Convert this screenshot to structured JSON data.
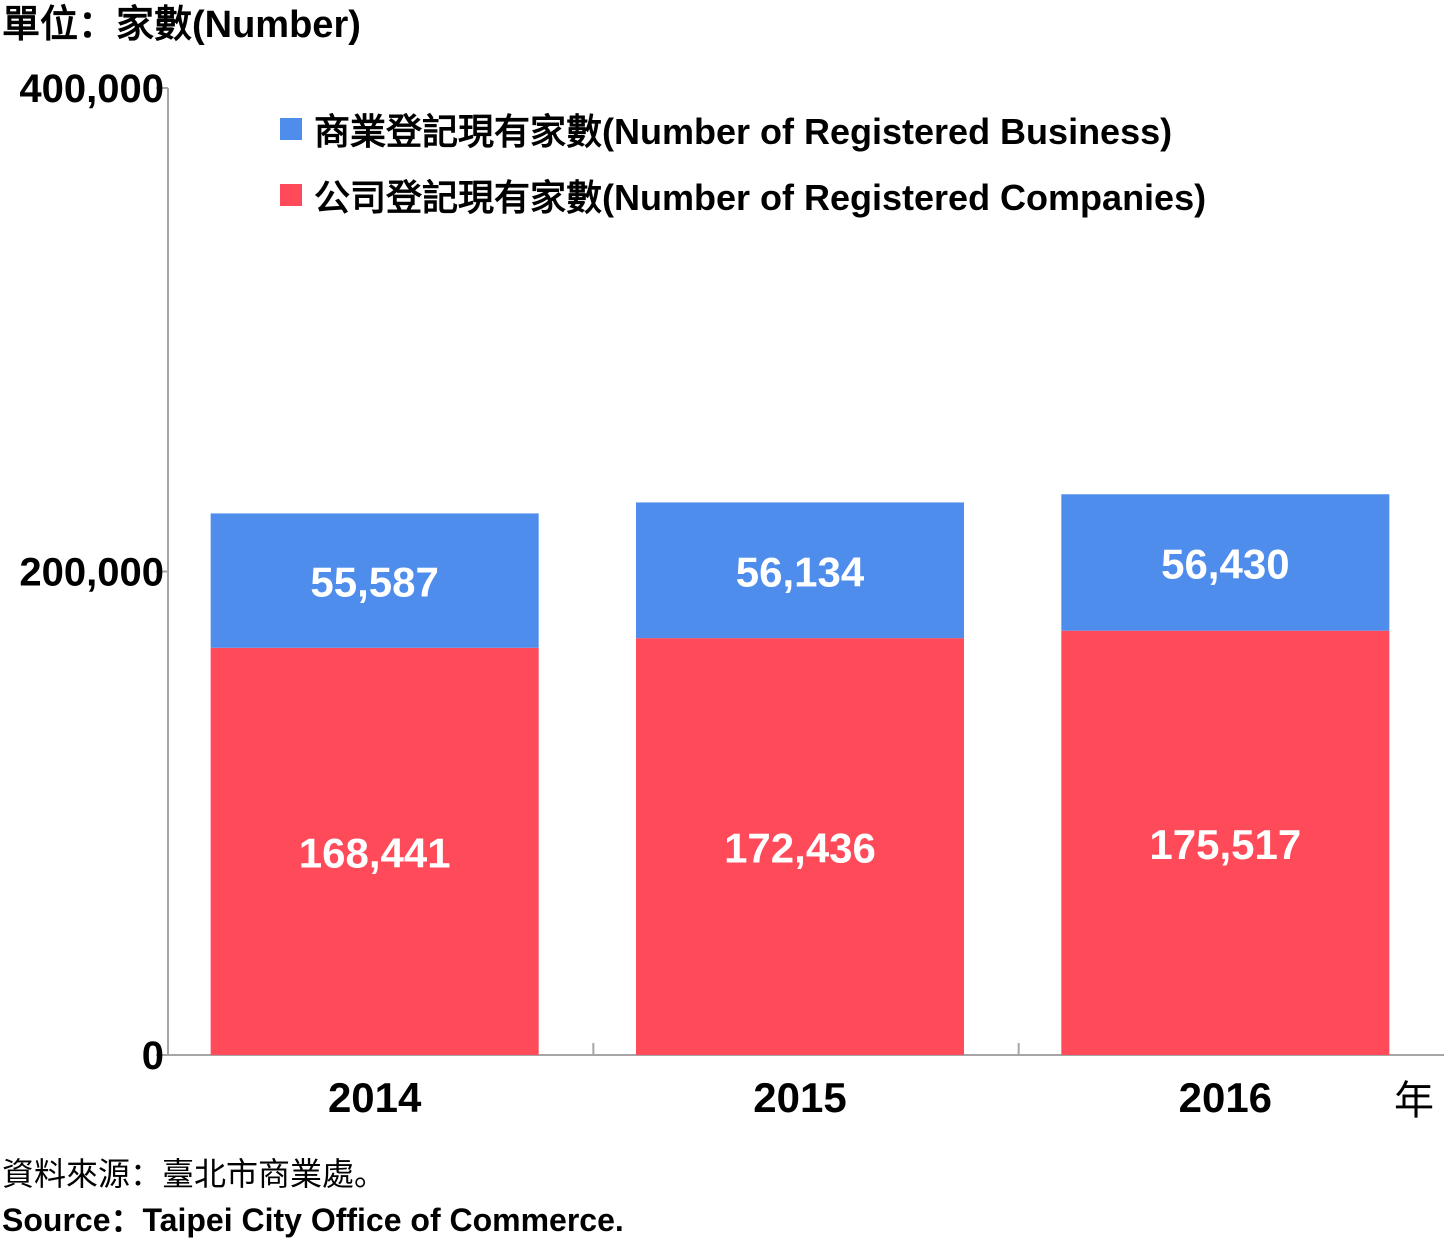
{
  "unit_label": "單位：家數(Number)",
  "x_unit_label": "年",
  "source": {
    "zh": "資料來源：臺北市商業處。",
    "en": "Source：Taipei City Office of Commerce."
  },
  "colors": {
    "business": "#4f8ded",
    "companies": "#ff4a5a",
    "axis": "#a6a6a6"
  },
  "chart_data": {
    "type": "bar",
    "stacked": true,
    "categories": [
      "2014",
      "2015",
      "2016"
    ],
    "series": [
      {
        "name": "公司登記現有家數(Number of Registered Companies)",
        "key": "companies",
        "values": [
          168441,
          172436,
          175517
        ]
      },
      {
        "name": "商業登記現有家數(Number of Registered Business)",
        "key": "business",
        "values": [
          55587,
          56134,
          56430
        ]
      }
    ],
    "data_labels": {
      "companies": [
        "168,441",
        "172,436",
        "175,517"
      ],
      "business": [
        "55,587",
        "56,134",
        "56,430"
      ]
    },
    "legend": [
      {
        "key": "business",
        "label": "商業登記現有家數(Number of Registered Business)"
      },
      {
        "key": "companies",
        "label": "公司登記現有家數(Number of Registered Companies)"
      }
    ],
    "legend_position": "top",
    "ylim": [
      0,
      400000
    ],
    "yticks": [
      0,
      200000,
      400000
    ],
    "ytick_labels": [
      "0",
      "200,000",
      "400,000"
    ],
    "grid": false
  }
}
